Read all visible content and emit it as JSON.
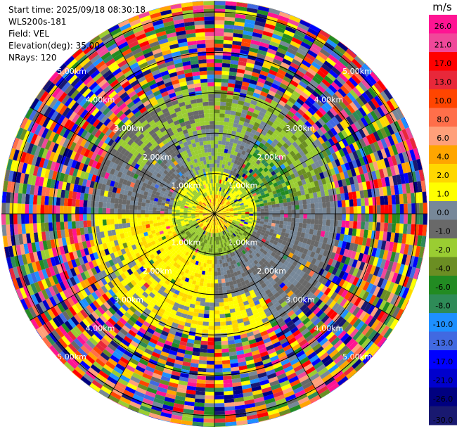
{
  "info": {
    "start_time": "Start time: 2025/09/18 08:30:18",
    "station": "WLS200s-181",
    "field": "Field: VEL",
    "elevation": "Elevation(deg): 35.00",
    "nrays": "NRays: 120"
  },
  "colorbar": {
    "unit": "m/s",
    "ticks": [
      "26.0",
      "21.0",
      "17.0",
      "13.0",
      "10.0",
      "8.0",
      "6.0",
      "4.0",
      "2.0",
      "1.0",
      "0.0",
      "-1.0",
      "-2.0",
      "-4.0",
      "-6.0",
      "-8.0",
      "-10.0",
      "-13.0",
      "-17.0",
      "-21.0",
      "-26.0",
      "-30.0"
    ],
    "colors": [
      "#ff1493",
      "#f0489a",
      "#ff0000",
      "#e8283a",
      "#ff4500",
      "#ff6f4a",
      "#ffa07a",
      "#ffa500",
      "#ffd700",
      "#ffff00",
      "#778899",
      "#696969",
      "#9acd32",
      "#6b8e23",
      "#228b22",
      "#2e8b57",
      "#1e90ff",
      "#4169e1",
      "#0000ff",
      "#0000cd",
      "#000080",
      "#191970"
    ]
  },
  "range_rings": {
    "labels": [
      "1.00km",
      "2.00km",
      "3.00km",
      "4.00km",
      "5.00km"
    ]
  },
  "chart_data": {
    "type": "heatmap",
    "title": "",
    "field": "VEL",
    "units": "m/s",
    "nrays": 120,
    "elevation_deg": 35.0,
    "max_range_km": 5.3,
    "color_scale_min": -30.0,
    "color_scale_max": 26.0,
    "range_rings_km": [
      1,
      2,
      3,
      4,
      5
    ],
    "near_field_pattern": "coherent velocities within ~3 km: yellow (+2 to +4 m/s) to the south-west and north, green (-1 to -8 m/s) near centre and north-east, gray (~0 m/s) elsewhere; beyond ~3 km the field is noise spanning the full scale"
  }
}
